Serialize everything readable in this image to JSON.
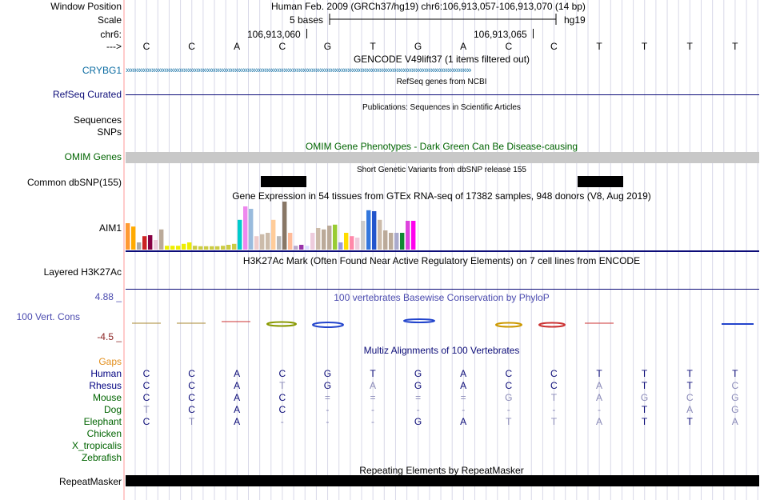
{
  "header": {
    "window_position_label": "Window Position",
    "scale_label": "Scale",
    "chrom_label": "chr6:",
    "arrow_label": "--->",
    "position_title": "Human Feb. 2009 (GRCh37/hg19)   chr6:106,913,057-106,913,070 (14 bp)",
    "scale_text": "5 bases",
    "assembly": "hg19",
    "coord1": "106,913,060",
    "coord2": "106,913,065"
  },
  "sequence": [
    "C",
    "C",
    "A",
    "C",
    "G",
    "T",
    "G",
    "A",
    "C",
    "C",
    "T",
    "T",
    "T",
    "T"
  ],
  "tracks": {
    "gencode": {
      "title": "GENCODE V49lift37 (1 items filtered out)",
      "gene_label": "CRYBG1"
    },
    "refseq": {
      "title": "RefSeq genes from NCBI",
      "label": "RefSeq Curated"
    },
    "publications": {
      "title": "Publications: Sequences in Scientific Articles",
      "label1": "Sequences",
      "label2": "SNPs"
    },
    "omim": {
      "title": "OMIM Gene Phenotypes - Dark Green Can Be Disease-causing",
      "label": "OMIM Genes"
    },
    "dbsnp": {
      "title": "Short Genetic Variants from dbSNP release 155",
      "label": "Common dbSNP(155)"
    },
    "gtex": {
      "title": "Gene Expression in 54 tissues from GTEx RNA-seq of 17382 samples, 948 donors (V8, Aug 2019)",
      "label": "AIM1",
      "bars": [
        {
          "v": 0.55,
          "c": "#ff9933"
        },
        {
          "v": 0.48,
          "c": "#ffaa00"
        },
        {
          "v": 0.15,
          "c": "#aaaaaa"
        },
        {
          "v": 0.28,
          "c": "#cc2222"
        },
        {
          "v": 0.3,
          "c": "#880044"
        },
        {
          "v": 0.2,
          "c": "#eeccdd"
        },
        {
          "v": 0.42,
          "c": "#bbaa99"
        },
        {
          "v": 0.08,
          "c": "#eeee00"
        },
        {
          "v": 0.08,
          "c": "#eeee00"
        },
        {
          "v": 0.08,
          "c": "#eeee00"
        },
        {
          "v": 0.12,
          "c": "#eeee00"
        },
        {
          "v": 0.15,
          "c": "#eeee00"
        },
        {
          "v": 0.08,
          "c": "#cccc44"
        },
        {
          "v": 0.07,
          "c": "#cccc44"
        },
        {
          "v": 0.07,
          "c": "#cccc44"
        },
        {
          "v": 0.07,
          "c": "#cccc44"
        },
        {
          "v": 0.07,
          "c": "#cccc44"
        },
        {
          "v": 0.08,
          "c": "#cccc44"
        },
        {
          "v": 0.1,
          "c": "#cccc44"
        },
        {
          "v": 0.12,
          "c": "#cccc44"
        },
        {
          "v": 0.62,
          "c": "#00cccc"
        },
        {
          "v": 0.9,
          "c": "#ee88ee"
        },
        {
          "v": 0.85,
          "c": "#99bbdd"
        },
        {
          "v": 0.28,
          "c": "#eecccc"
        },
        {
          "v": 0.32,
          "c": "#ccbbaa"
        },
        {
          "v": 0.35,
          "c": "#ccbbaa"
        },
        {
          "v": 0.62,
          "c": "#ffcc99"
        },
        {
          "v": 0.28,
          "c": "#bbbbbb"
        },
        {
          "v": 1.0,
          "c": "#887766"
        },
        {
          "v": 0.35,
          "c": "#ffbb99"
        },
        {
          "v": 0.08,
          "c": "#bbaacc"
        },
        {
          "v": 0.1,
          "c": "#9933aa"
        },
        {
          "v": 0.08,
          "c": "#ddddff"
        },
        {
          "v": 0.35,
          "c": "#eeccdd"
        },
        {
          "v": 0.45,
          "c": "#ccbbaa"
        },
        {
          "v": 0.42,
          "c": "#bbaa99"
        },
        {
          "v": 0.5,
          "c": "#bbaa99"
        },
        {
          "v": 0.52,
          "c": "#99cc33"
        },
        {
          "v": 0.15,
          "c": "#9999dd"
        },
        {
          "v": 0.35,
          "c": "#ffdd00"
        },
        {
          "v": 0.28,
          "c": "#ff88aa"
        },
        {
          "v": 0.25,
          "c": "#eeccdd"
        },
        {
          "v": 0.6,
          "c": "#cccccc"
        },
        {
          "v": 0.82,
          "c": "#3377dd"
        },
        {
          "v": 0.8,
          "c": "#2255cc"
        },
        {
          "v": 0.62,
          "c": "#ccbbaa"
        },
        {
          "v": 0.4,
          "c": "#bbaa99"
        },
        {
          "v": 0.35,
          "c": "#bbaa99"
        },
        {
          "v": 0.35,
          "c": "#aaaacc"
        },
        {
          "v": 0.35,
          "c": "#118833"
        },
        {
          "v": 0.6,
          "c": "#dd44dd"
        },
        {
          "v": 0.6,
          "c": "#ff00ee"
        }
      ]
    },
    "h3k27ac": {
      "title": "H3K27Ac Mark (Often Found Near Active Regulatory Elements) on 7 cell lines from ENCODE",
      "label": "Layered H3K27Ac"
    },
    "cons": {
      "title": "100 vertebrates Basewise Conservation by PhyloP",
      "label": "100 Vert. Cons",
      "ymax": "4.88 _",
      "ymin": "-4.5 _"
    },
    "multiz": {
      "title": "Multiz Alignments of 100 Vertebrates",
      "gaps_label": "Gaps",
      "species": [
        {
          "name": "Human",
          "color": "#000080",
          "bases": [
            "C",
            "C",
            "A",
            "C",
            "G",
            "T",
            "G",
            "A",
            "C",
            "C",
            "T",
            "T",
            "T",
            "T"
          ],
          "dim": [
            0,
            0,
            0,
            0,
            0,
            0,
            0,
            0,
            0,
            0,
            0,
            0,
            0,
            0
          ]
        },
        {
          "name": "Rhesus",
          "color": "#000080",
          "bases": [
            "C",
            "C",
            "A",
            "T",
            "G",
            "A",
            "G",
            "A",
            "C",
            "C",
            "A",
            "T",
            "T",
            "C"
          ],
          "dim": [
            0,
            0,
            0,
            1,
            0,
            1,
            0,
            0,
            0,
            0,
            1,
            0,
            0,
            1
          ]
        },
        {
          "name": "Mouse",
          "color": "#006400",
          "bases": [
            "C",
            "C",
            "A",
            "C",
            "=",
            "=",
            "=",
            "=",
            "G",
            "T",
            "A",
            "G",
            "C",
            "G"
          ],
          "dim": [
            0,
            0,
            0,
            0,
            1,
            1,
            1,
            1,
            1,
            1,
            1,
            1,
            1,
            1
          ]
        },
        {
          "name": "Dog",
          "color": "#006400",
          "bases": [
            "T",
            "C",
            "A",
            "C",
            "-",
            "-",
            "-",
            "-",
            "-",
            "-",
            "-",
            "T",
            "A",
            "G"
          ],
          "dim": [
            1,
            0,
            0,
            0,
            1,
            1,
            1,
            1,
            1,
            1,
            1,
            0,
            1,
            1
          ]
        },
        {
          "name": "Elephant",
          "color": "#006400",
          "bases": [
            "C",
            "T",
            "A",
            "-",
            "-",
            "-",
            "G",
            "A",
            "T",
            "T",
            "A",
            "T",
            "T",
            "A"
          ],
          "dim": [
            0,
            1,
            0,
            1,
            1,
            1,
            0,
            0,
            1,
            1,
            1,
            0,
            0,
            1
          ]
        },
        {
          "name": "Chicken",
          "color": "#006400",
          "bases": [],
          "dim": []
        },
        {
          "name": "X_tropicalis",
          "color": "#006400",
          "bases": [],
          "dim": []
        },
        {
          "name": "Zebrafish",
          "color": "#006400",
          "bases": [],
          "dim": []
        }
      ]
    },
    "repeatmasker": {
      "title": "Repeating Elements by RepeatMasker",
      "label": "RepeatMasker"
    }
  },
  "colors": {
    "gencode": "#0c6ca2",
    "refseq": "#0c0c78",
    "omim": "#006400",
    "cons": "#4b4baf",
    "gaps": "#e28e1c",
    "cons_min": "#8b2323",
    "grid": "#d8d8e8",
    "divider": "#ff9999"
  }
}
